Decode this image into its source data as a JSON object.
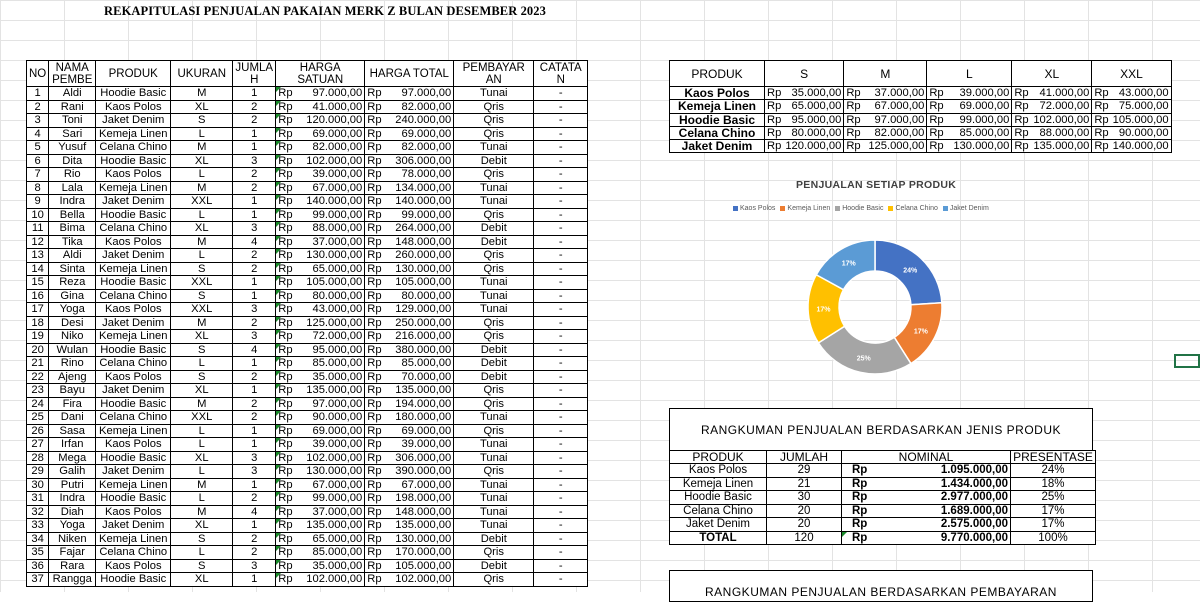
{
  "title": "REKAPITULASI PENJUALAN PAKAIAN MERK Z BULAN DESEMBER 2023",
  "main_headers": [
    "NO",
    "NAMA PEMBE",
    "PRODUK",
    "UKURAN",
    "JUMLA H",
    "HARGA SATUAN",
    "HARGA TOTAL",
    "PEMBAYAR AN",
    "CATATA N"
  ],
  "rows": [
    [
      "1",
      "Aldi",
      "Hoodie Basic",
      "M",
      "1",
      "97.000,00",
      "97.000,00",
      "Tunai",
      "-"
    ],
    [
      "2",
      "Rani",
      "Kaos Polos",
      "XL",
      "2",
      "41.000,00",
      "82.000,00",
      "Qris",
      "-"
    ],
    [
      "3",
      "Toni",
      "Jaket Denim",
      "S",
      "2",
      "120.000,00",
      "240.000,00",
      "Qris",
      "-"
    ],
    [
      "4",
      "Sari",
      "Kemeja Linen",
      "L",
      "1",
      "69.000,00",
      "69.000,00",
      "Qris",
      "-"
    ],
    [
      "5",
      "Yusuf",
      "Celana Chino",
      "M",
      "1",
      "82.000,00",
      "82.000,00",
      "Tunai",
      "-"
    ],
    [
      "6",
      "Dita",
      "Hoodie Basic",
      "XL",
      "3",
      "102.000,00",
      "306.000,00",
      "Debit",
      "-"
    ],
    [
      "7",
      "Rio",
      "Kaos Polos",
      "L",
      "2",
      "39.000,00",
      "78.000,00",
      "Qris",
      "-"
    ],
    [
      "8",
      "Lala",
      "Kemeja Linen",
      "M",
      "2",
      "67.000,00",
      "134.000,00",
      "Tunai",
      "-"
    ],
    [
      "9",
      "Indra",
      "Jaket Denim",
      "XXL",
      "1",
      "140.000,00",
      "140.000,00",
      "Tunai",
      "-"
    ],
    [
      "10",
      "Bella",
      "Hoodie Basic",
      "L",
      "1",
      "99.000,00",
      "99.000,00",
      "Qris",
      "-"
    ],
    [
      "11",
      "Bima",
      "Celana Chino",
      "XL",
      "3",
      "88.000,00",
      "264.000,00",
      "Debit",
      "-"
    ],
    [
      "12",
      "Tika",
      "Kaos Polos",
      "M",
      "4",
      "37.000,00",
      "148.000,00",
      "Debit",
      "-"
    ],
    [
      "13",
      "Aldi",
      "Jaket Denim",
      "L",
      "2",
      "130.000,00",
      "260.000,00",
      "Qris",
      "-"
    ],
    [
      "14",
      "Sinta",
      "Kemeja Linen",
      "S",
      "2",
      "65.000,00",
      "130.000,00",
      "Qris",
      "-"
    ],
    [
      "15",
      "Reza",
      "Hoodie Basic",
      "XXL",
      "1",
      "105.000,00",
      "105.000,00",
      "Tunai",
      "-"
    ],
    [
      "16",
      "Gina",
      "Celana Chino",
      "S",
      "1",
      "80.000,00",
      "80.000,00",
      "Tunai",
      "-"
    ],
    [
      "17",
      "Yoga",
      "Kaos Polos",
      "XXL",
      "3",
      "43.000,00",
      "129.000,00",
      "Tunai",
      "-"
    ],
    [
      "18",
      "Desi",
      "Jaket Denim",
      "M",
      "2",
      "125.000,00",
      "250.000,00",
      "Qris",
      "-"
    ],
    [
      "19",
      "Niko",
      "Kemeja Linen",
      "XL",
      "3",
      "72.000,00",
      "216.000,00",
      "Qris",
      "-"
    ],
    [
      "20",
      "Wulan",
      "Hoodie Basic",
      "S",
      "4",
      "95.000,00",
      "380.000,00",
      "Debit",
      "-"
    ],
    [
      "21",
      "Rino",
      "Celana Chino",
      "L",
      "1",
      "85.000,00",
      "85.000,00",
      "Debit",
      "-"
    ],
    [
      "22",
      "Ajeng",
      "Kaos Polos",
      "S",
      "2",
      "35.000,00",
      "70.000,00",
      "Debit",
      "-"
    ],
    [
      "23",
      "Bayu",
      "Jaket Denim",
      "XL",
      "1",
      "135.000,00",
      "135.000,00",
      "Qris",
      "-"
    ],
    [
      "24",
      "Fira",
      "Hoodie Basic",
      "M",
      "2",
      "97.000,00",
      "194.000,00",
      "Qris",
      "-"
    ],
    [
      "25",
      "Dani",
      "Celana Chino",
      "XXL",
      "2",
      "90.000,00",
      "180.000,00",
      "Tunai",
      "-"
    ],
    [
      "26",
      "Sasa",
      "Kemeja Linen",
      "L",
      "1",
      "69.000,00",
      "69.000,00",
      "Qris",
      "-"
    ],
    [
      "27",
      "Irfan",
      "Kaos Polos",
      "L",
      "1",
      "39.000,00",
      "39.000,00",
      "Tunai",
      "-"
    ],
    [
      "28",
      "Mega",
      "Hoodie Basic",
      "XL",
      "3",
      "102.000,00",
      "306.000,00",
      "Tunai",
      "-"
    ],
    [
      "29",
      "Galih",
      "Jaket Denim",
      "L",
      "3",
      "130.000,00",
      "390.000,00",
      "Qris",
      "-"
    ],
    [
      "30",
      "Putri",
      "Kemeja Linen",
      "M",
      "1",
      "67.000,00",
      "67.000,00",
      "Tunai",
      "-"
    ],
    [
      "31",
      "Indra",
      "Hoodie Basic",
      "L",
      "2",
      "99.000,00",
      "198.000,00",
      "Tunai",
      "-"
    ],
    [
      "32",
      "Diah",
      "Kaos Polos",
      "M",
      "4",
      "37.000,00",
      "148.000,00",
      "Tunai",
      "-"
    ],
    [
      "33",
      "Yoga",
      "Jaket Denim",
      "XL",
      "1",
      "135.000,00",
      "135.000,00",
      "Tunai",
      "-"
    ],
    [
      "34",
      "Niken",
      "Kemeja Linen",
      "S",
      "2",
      "65.000,00",
      "130.000,00",
      "Debit",
      "-"
    ],
    [
      "35",
      "Fajar",
      "Celana Chino",
      "L",
      "2",
      "85.000,00",
      "170.000,00",
      "Qris",
      "-"
    ],
    [
      "36",
      "Rara",
      "Kaos Polos",
      "S",
      "3",
      "35.000,00",
      "105.000,00",
      "Debit",
      "-"
    ],
    [
      "37",
      "Rangga",
      "Hoodie Basic",
      "XL",
      "1",
      "102.000,00",
      "102.000,00",
      "Qris",
      "-"
    ]
  ],
  "currency": "Rp",
  "price_headers": [
    "PRODUK",
    "S",
    "M",
    "L",
    "XL",
    "XXL"
  ],
  "price_rows": [
    [
      "Kaos Polos",
      "35.000,00",
      "37.000,00",
      "39.000,00",
      "41.000,00",
      "43.000,00"
    ],
    [
      "Kemeja Linen",
      "65.000,00",
      "67.000,00",
      "69.000,00",
      "72.000,00",
      "75.000,00"
    ],
    [
      "Hoodie Basic",
      "95.000,00",
      "97.000,00",
      "99.000,00",
      "102.000,00",
      "105.000,00"
    ],
    [
      "Celana Chino",
      "80.000,00",
      "82.000,00",
      "85.000,00",
      "88.000,00",
      "90.000,00"
    ],
    [
      "Jaket Denim",
      "120.000,00",
      "125.000,00",
      "130.000,00",
      "135.000,00",
      "140.000,00"
    ]
  ],
  "chart_data": {
    "type": "pie",
    "title": "PENJUALAN SETIAP PRODUK",
    "categories": [
      "Kaos Polos",
      "Kemeja Linen",
      "Hoodie Basic",
      "Celana Chino",
      "Jaket Denim"
    ],
    "values": [
      24,
      17,
      25,
      17,
      17
    ],
    "labels": [
      "24%",
      "17%",
      "25%",
      "17%",
      "17%"
    ],
    "colors": [
      "#4472C4",
      "#ED7D31",
      "#A5A5A5",
      "#FFC000",
      "#5B9BD5"
    ],
    "legend_position": "top",
    "donut": true
  },
  "summary_title": "RANGKUMAN PENJUALAN BERDASARKAN JENIS PRODUK",
  "summary_headers": [
    "PRODUK",
    "JUMLAH",
    "NOMINAL",
    "PRESENTASE"
  ],
  "summary_rows": [
    [
      "Kaos Polos",
      "29",
      "1.095.000,00",
      "24%"
    ],
    [
      "Kemeja Linen",
      "21",
      "1.434.000,00",
      "18%"
    ],
    [
      "Hoodie Basic",
      "30",
      "2.977.000,00",
      "25%"
    ],
    [
      "Celana Chino",
      "20",
      "1.689.000,00",
      "17%"
    ],
    [
      "Jaket Denim",
      "20",
      "2.575.000,00",
      "17%"
    ]
  ],
  "summary_total": [
    "TOTAL",
    "120",
    "9.770.000,00",
    "100%"
  ],
  "summary2_title": "RANGKUMAN PENJUALAN BERDASARKAN PEMBAYARAN"
}
